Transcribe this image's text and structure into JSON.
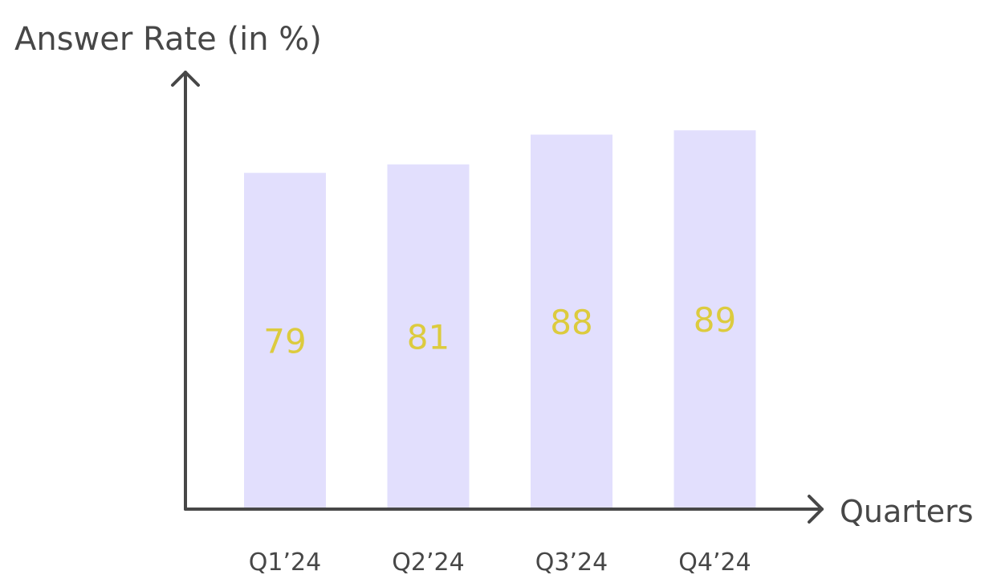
{
  "chart_data": {
    "type": "bar",
    "title": "Answer Rate (in %)",
    "xlabel": "Quarters",
    "ylabel": "",
    "categories": [
      "Q1’24",
      "Q2’24",
      "Q3’24",
      "Q4’24"
    ],
    "values": [
      79,
      81,
      88,
      89
    ],
    "data_labels": [
      "79",
      "81",
      "88",
      "89"
    ],
    "ylim": [
      0,
      100
    ],
    "grid": false,
    "legend": "none",
    "colors": {
      "bar": "#e2dffd",
      "axis": "#474747",
      "text": "#474747",
      "value_label": "#dccb3e"
    }
  }
}
